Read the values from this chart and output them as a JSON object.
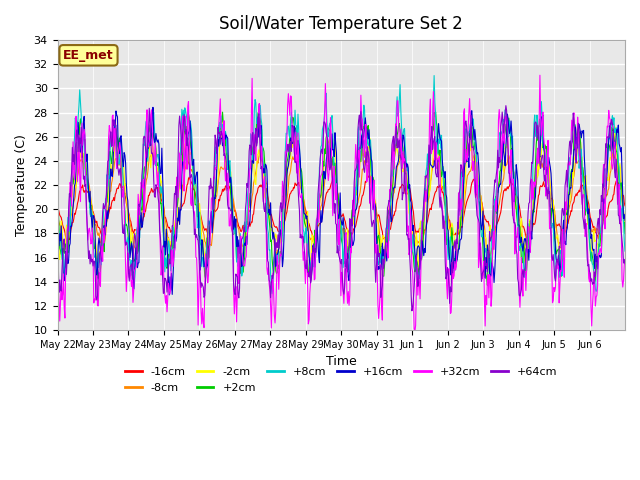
{
  "title": "Soil/Water Temperature Set 2",
  "xlabel": "Time",
  "ylabel": "Temperature (C)",
  "ylim": [
    10,
    34
  ],
  "xlim": [
    0,
    16
  ],
  "plot_bg": "#e8e8e8",
  "series": [
    {
      "label": "-16cm",
      "color": "#ff0000"
    },
    {
      "label": "-8cm",
      "color": "#ff8800"
    },
    {
      "label": "-2cm",
      "color": "#ffff00"
    },
    {
      "label": "+2cm",
      "color": "#00cc00"
    },
    {
      "label": "+8cm",
      "color": "#00cccc"
    },
    {
      "label": "+16cm",
      "color": "#0000cc"
    },
    {
      "label": "+32cm",
      "color": "#ff00ff"
    },
    {
      "label": "+64cm",
      "color": "#8800cc"
    }
  ],
  "xtick_positions": [
    0,
    1,
    2,
    3,
    4,
    5,
    6,
    7,
    8,
    9,
    10,
    11,
    12,
    13,
    14,
    15
  ],
  "xtick_labels": [
    "May 22",
    "May 23",
    "May 24",
    "May 25",
    "May 26",
    "May 27",
    "May 28",
    "May 29",
    "May 30",
    "May 31",
    "Jun 1",
    "Jun 2",
    "Jun 3",
    "Jun 4",
    "Jun 5",
    "Jun 6"
  ],
  "annotation_text": "EE_met",
  "annotation_color": "#8b0000",
  "annotation_bg": "#ffff99",
  "annotation_border": "#8b6914"
}
